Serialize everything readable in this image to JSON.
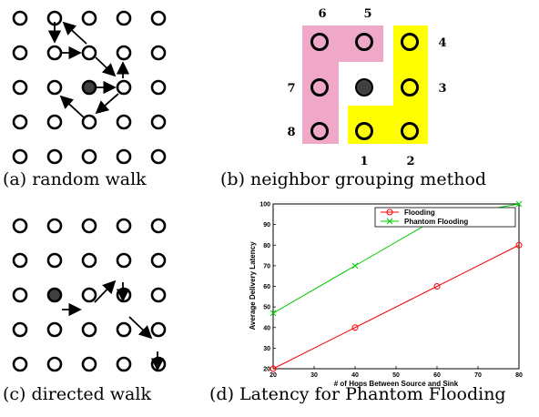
{
  "captions": {
    "a": "(a) random walk",
    "b": "(b) neighbor grouping method",
    "c": "(c) directed walk",
    "d": "(d) Latency for Phantom Flooding"
  },
  "grouping_labels": [
    "1",
    "2",
    "3",
    "4",
    "5",
    "6",
    "7",
    "8"
  ],
  "colors": {
    "pink": "#f0a8c8",
    "yellow": "#ffff00",
    "node_fill_center": "#404040",
    "flooding": "#ff0000",
    "phantom_flooding": "#00cc00"
  },
  "chart_data": {
    "type": "line",
    "xlabel": "# of Hops Between Source and Sink",
    "ylabel": "Average Delivery Latency",
    "xlim": [
      20,
      80
    ],
    "ylim": [
      20,
      100
    ],
    "xticks": [
      20,
      30,
      40,
      50,
      60,
      70,
      80
    ],
    "yticks": [
      20,
      30,
      40,
      50,
      60,
      70,
      80,
      90,
      100
    ],
    "grid": false,
    "legend_position": "top-right",
    "series": [
      {
        "name": "Flooding",
        "color": "#ff0000",
        "marker": "circle",
        "x": [
          20,
          40,
          60,
          80
        ],
        "y": [
          20,
          40,
          60,
          80
        ]
      },
      {
        "name": "Phantom Flooding",
        "color": "#00cc00",
        "marker": "x",
        "x": [
          20,
          40,
          60,
          80
        ],
        "y": [
          47,
          70,
          93,
          100
        ]
      }
    ]
  }
}
